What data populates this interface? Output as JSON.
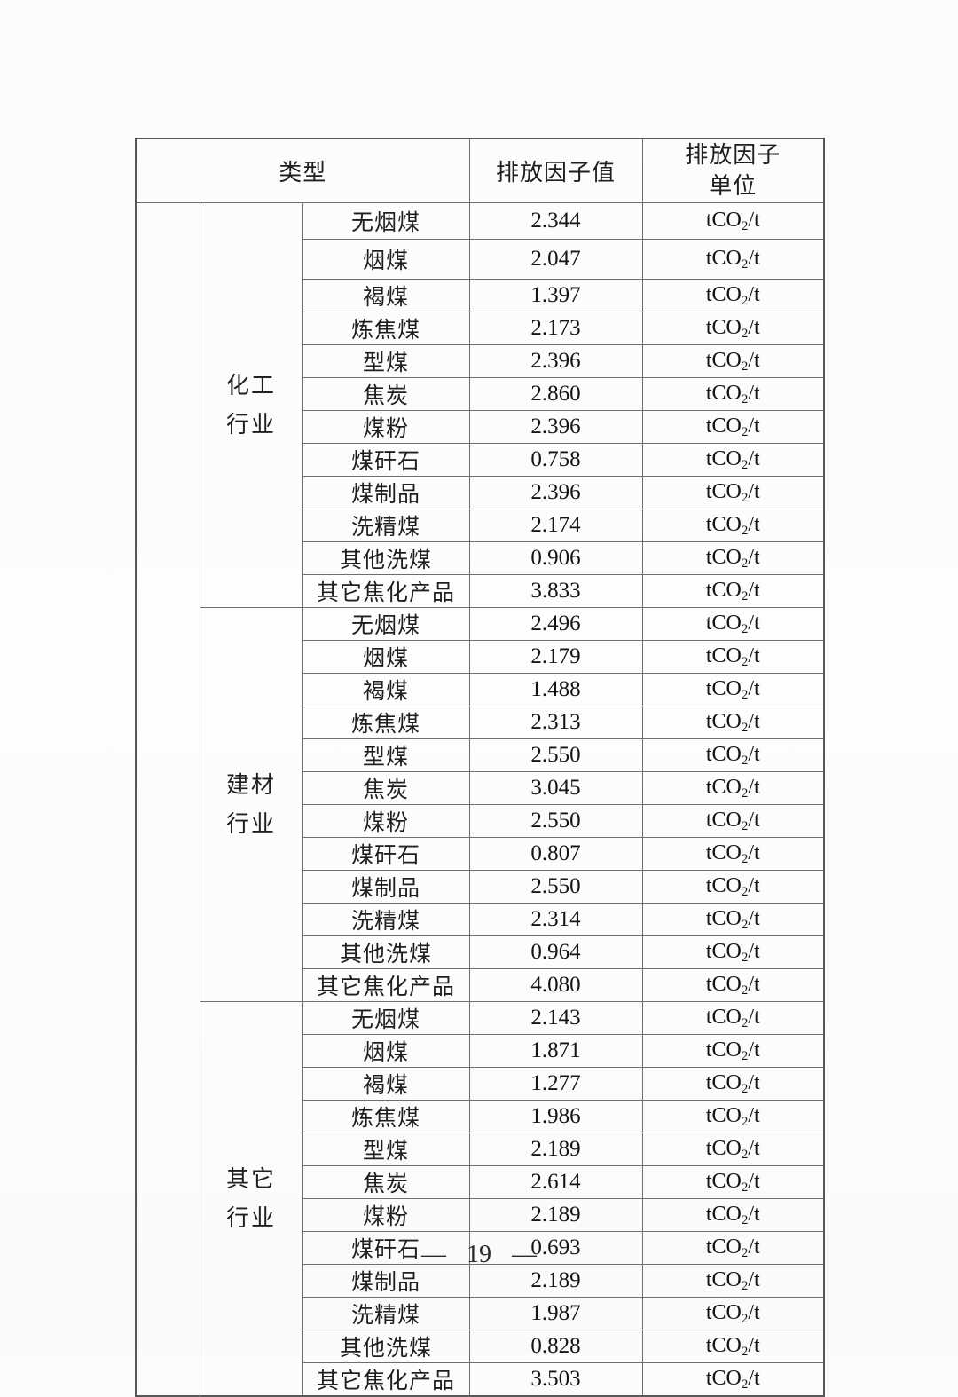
{
  "page": {
    "footer_text": "— 19 —"
  },
  "table": {
    "header": {
      "type_label": "类型",
      "value_label": "排放因子值",
      "unit_label_lines": [
        "排放因子",
        "单位"
      ]
    },
    "sections": [
      {
        "industry_lines": [
          "化工",
          "行业"
        ],
        "rows": [
          {
            "fuel": "无烟煤",
            "value": "2.344",
            "unit": "tCO2/t"
          },
          {
            "fuel": "烟煤",
            "value": "2.047",
            "unit": "tCO2/t"
          },
          {
            "fuel": "褐煤",
            "value": "1.397",
            "unit": "tCO2/t"
          },
          {
            "fuel": "炼焦煤",
            "value": "2.173",
            "unit": "tCO2/t"
          },
          {
            "fuel": "型煤",
            "value": "2.396",
            "unit": "tCO2/t"
          },
          {
            "fuel": "焦炭",
            "value": "2.860",
            "unit": "tCO2/t"
          },
          {
            "fuel": "煤粉",
            "value": "2.396",
            "unit": "tCO2/t"
          },
          {
            "fuel": "煤矸石",
            "value": "0.758",
            "unit": "tCO2/t"
          },
          {
            "fuel": "煤制品",
            "value": "2.396",
            "unit": "tCO2/t"
          },
          {
            "fuel": "洗精煤",
            "value": "2.174",
            "unit": "tCO2/t"
          },
          {
            "fuel": "其他洗煤",
            "value": "0.906",
            "unit": "tCO2/t"
          },
          {
            "fuel": "其它焦化产品",
            "value": "3.833",
            "unit": "tCO2/t"
          }
        ]
      },
      {
        "industry_lines": [
          "建材",
          "行业"
        ],
        "rows": [
          {
            "fuel": "无烟煤",
            "value": "2.496",
            "unit": "tCO2/t"
          },
          {
            "fuel": "烟煤",
            "value": "2.179",
            "unit": "tCO2/t"
          },
          {
            "fuel": "褐煤",
            "value": "1.488",
            "unit": "tCO2/t"
          },
          {
            "fuel": "炼焦煤",
            "value": "2.313",
            "unit": "tCO2/t"
          },
          {
            "fuel": "型煤",
            "value": "2.550",
            "unit": "tCO2/t"
          },
          {
            "fuel": "焦炭",
            "value": "3.045",
            "unit": "tCO2/t"
          },
          {
            "fuel": "煤粉",
            "value": "2.550",
            "unit": "tCO2/t"
          },
          {
            "fuel": "煤矸石",
            "value": "0.807",
            "unit": "tCO2/t"
          },
          {
            "fuel": "煤制品",
            "value": "2.550",
            "unit": "tCO2/t"
          },
          {
            "fuel": "洗精煤",
            "value": "2.314",
            "unit": "tCO2/t"
          },
          {
            "fuel": "其他洗煤",
            "value": "0.964",
            "unit": "tCO2/t"
          },
          {
            "fuel": "其它焦化产品",
            "value": "4.080",
            "unit": "tCO2/t"
          }
        ]
      },
      {
        "industry_lines": [
          "其它",
          "行业"
        ],
        "rows": [
          {
            "fuel": "无烟煤",
            "value": "2.143",
            "unit": "tCO2/t"
          },
          {
            "fuel": "烟煤",
            "value": "1.871",
            "unit": "tCO2/t"
          },
          {
            "fuel": "褐煤",
            "value": "1.277",
            "unit": "tCO2/t"
          },
          {
            "fuel": "炼焦煤",
            "value": "1.986",
            "unit": "tCO2/t"
          },
          {
            "fuel": "型煤",
            "value": "2.189",
            "unit": "tCO2/t"
          },
          {
            "fuel": "焦炭",
            "value": "2.614",
            "unit": "tCO2/t"
          },
          {
            "fuel": "煤粉",
            "value": "2.189",
            "unit": "tCO2/t"
          },
          {
            "fuel": "煤矸石",
            "value": "0.693",
            "unit": "tCO2/t"
          },
          {
            "fuel": "煤制品",
            "value": "2.189",
            "unit": "tCO2/t"
          },
          {
            "fuel": "洗精煤",
            "value": "1.987",
            "unit": "tCO2/t"
          },
          {
            "fuel": "其他洗煤",
            "value": "0.828",
            "unit": "tCO2/t"
          },
          {
            "fuel": "其它焦化产品",
            "value": "3.503",
            "unit": "tCO2/t"
          }
        ]
      }
    ]
  },
  "colors": {
    "text": "#1f1f1f",
    "border_inner": "#6e6e6e",
    "border_outer": "#585858",
    "background": "#fcfcfc"
  }
}
